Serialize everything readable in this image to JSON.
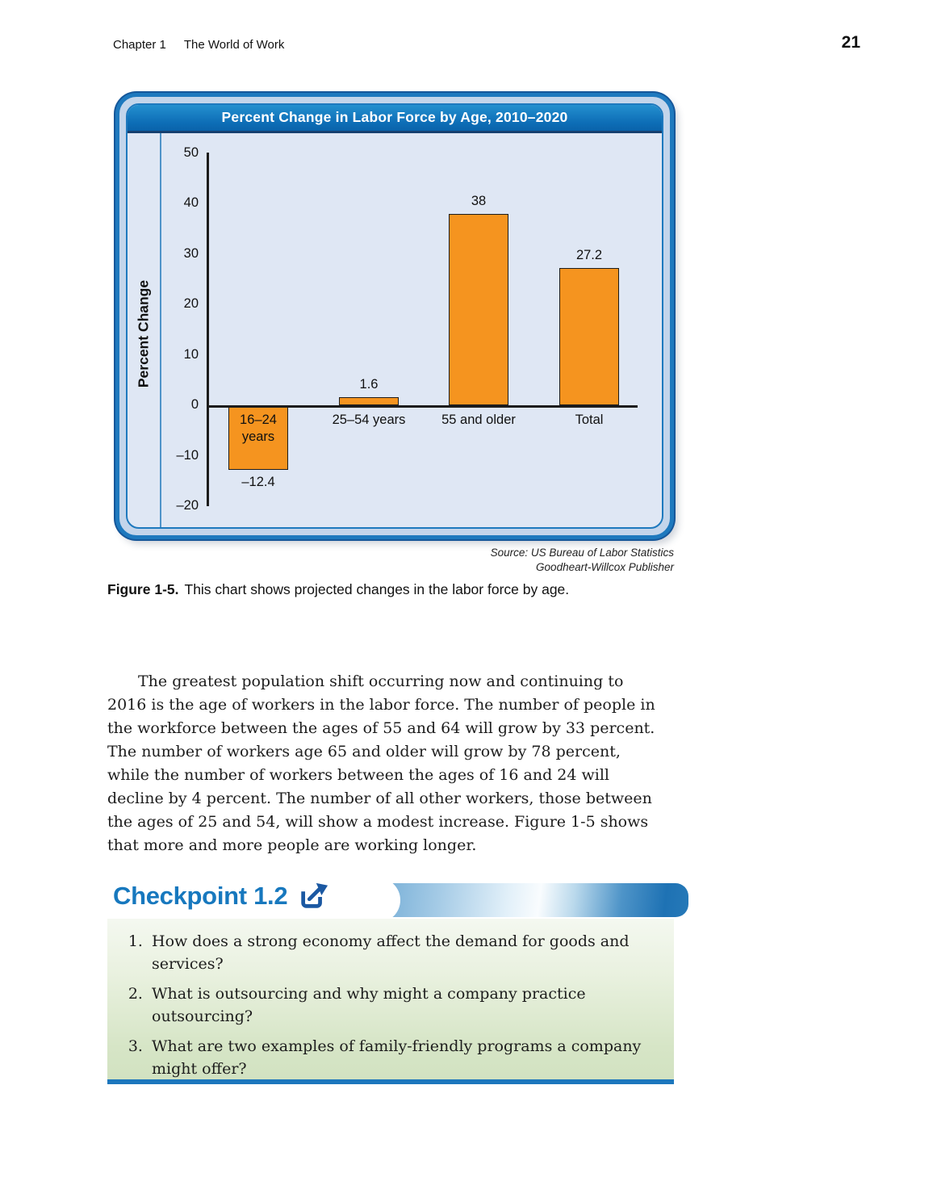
{
  "page": {
    "chapter_label": "Chapter 1",
    "chapter_title": "The World of Work",
    "page_number": "21"
  },
  "chart_data": {
    "type": "bar",
    "title": "Percent Change in Labor Force by Age, 2010–2020",
    "ylabel": "Percent Change",
    "xlabel": "",
    "categories": [
      "16–24\nyears",
      "25–54 years",
      "55 and older",
      "Total"
    ],
    "values": [
      -12.4,
      1.6,
      38,
      27.2
    ],
    "value_labels": [
      "–12.4",
      "1.6",
      "38",
      "27.2"
    ],
    "ylim": [
      -20,
      50
    ],
    "ytick_values": [
      50,
      40,
      30,
      20,
      10,
      0,
      -10,
      -20
    ],
    "ytick_labels": [
      "50",
      "40",
      "30",
      "20",
      "10",
      "0",
      "–10",
      "–20"
    ],
    "grid": false,
    "legend": "none",
    "bar_color": "#F5941F",
    "bar_border_color": "#1c1c1c"
  },
  "figure": {
    "source_line1": "Source: US Bureau of Labor Statistics",
    "source_line2": "Goodheart-Willcox Publisher",
    "label": "Figure 1-5.",
    "caption": "This chart shows projected changes in the labor force by age."
  },
  "paragraph": {
    "text": "The greatest population shift occurring now and continuing to 2016 is the age of workers in the labor force. The number of people in the workforce between the ages of 55 and 64 will grow by 33 percent. The number of workers age 65 and older will grow by 78 percent, while the number of workers between the ages of 16 and 24 will decline by 4 percent. The number of all other workers, those between the ages of 25 and 54, will show a modest increase. Figure 1-5 shows that more and more people are working longer."
  },
  "checkpoint": {
    "heading": "Checkpoint 1.2",
    "external_link_icon": "external-link-arrow",
    "questions": [
      "How does a strong economy affect the demand for goods and services?",
      "What is outsourcing and why might a company practice outsourcing?",
      "What are two examples of family-friendly programs a company might offer?"
    ]
  },
  "colors": {
    "frame_border_blue": "#1e79be",
    "frame_band_blue": "#c3d5eb",
    "titlebar_blue": "#0d6db6",
    "plot_background": "#dfe7f4",
    "bar_orange": "#F5941F",
    "checkpoint_heading_blue": "#1778be",
    "checkpoint_icon_blue": "#1b58a2",
    "panel_green_bottom": "#d2e2c1",
    "panel_bottom_line_blue": "#1c77bd"
  }
}
